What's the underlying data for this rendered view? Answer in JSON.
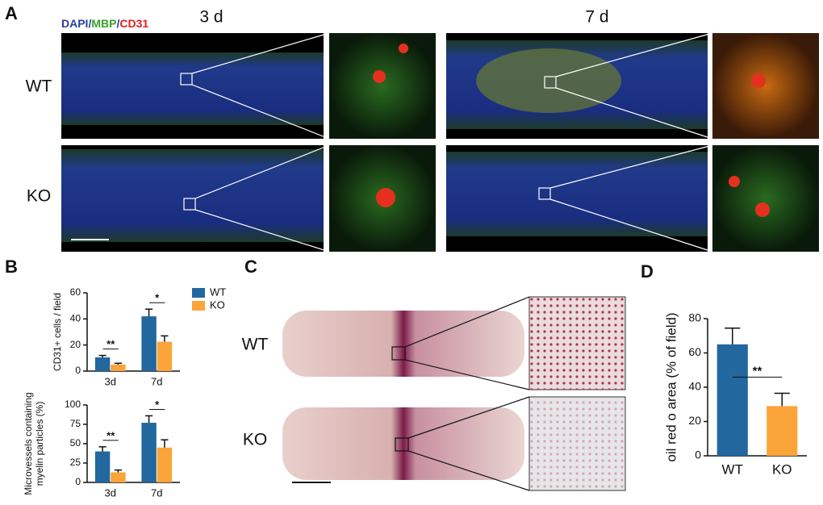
{
  "panels": [
    "A",
    "B",
    "C",
    "D"
  ],
  "panel_a": {
    "stain": [
      {
        "text": "DAPI",
        "color": "#2a3f9f"
      },
      {
        "text": "/",
        "color": "#2a3f9f"
      },
      {
        "text": "MBP",
        "color": "#3aa02a"
      },
      {
        "text": "/",
        "color": "#2a3f9f"
      },
      {
        "text": "CD31",
        "color": "#e02020"
      }
    ],
    "times": [
      "3 d",
      "7 d"
    ],
    "rows": [
      "WT",
      "KO"
    ]
  },
  "panel_c": {
    "rows": [
      "WT",
      "KO"
    ]
  },
  "chart_data": [
    {
      "type": "bar",
      "ylabel": [
        "CD31+ cells / field"
      ],
      "categories": [
        "3d",
        "7d"
      ],
      "series": [
        {
          "name": "WT",
          "color": "#22679e",
          "values": [
            10.5,
            42
          ],
          "errors": [
            1.5,
            5.5
          ]
        },
        {
          "name": "KO",
          "color": "#faa43a",
          "values": [
            5,
            22.5
          ],
          "errors": [
            1,
            4.5
          ]
        }
      ],
      "annotations": [
        "**",
        "*"
      ],
      "ylim": [
        0,
        60
      ],
      "yticks": [
        0,
        20,
        40,
        60
      ],
      "legend": "right"
    },
    {
      "type": "bar",
      "ylabel": [
        "Microvessels containing",
        "myelin particles (%)"
      ],
      "categories": [
        "3d",
        "7d"
      ],
      "series": [
        {
          "name": "WT",
          "color": "#22679e",
          "values": [
            40,
            77
          ],
          "errors": [
            6,
            9
          ]
        },
        {
          "name": "KO",
          "color": "#faa43a",
          "values": [
            13,
            45
          ],
          "errors": [
            3,
            10
          ]
        }
      ],
      "annotations": [
        "**",
        "*"
      ],
      "ylim": [
        0,
        100
      ],
      "yticks": [
        0,
        25,
        50,
        75,
        100
      ]
    },
    {
      "type": "bar",
      "ylabel": [
        "oil red o area (% of field)"
      ],
      "categories": [
        "WT",
        "KO"
      ],
      "values": [
        65,
        29
      ],
      "errors": [
        9.5,
        7.5
      ],
      "colors": [
        "#22679e",
        "#faa43a"
      ],
      "annotation": "**",
      "ylim": [
        0,
        80
      ],
      "yticks": [
        0,
        20,
        40,
        60,
        80
      ]
    }
  ]
}
